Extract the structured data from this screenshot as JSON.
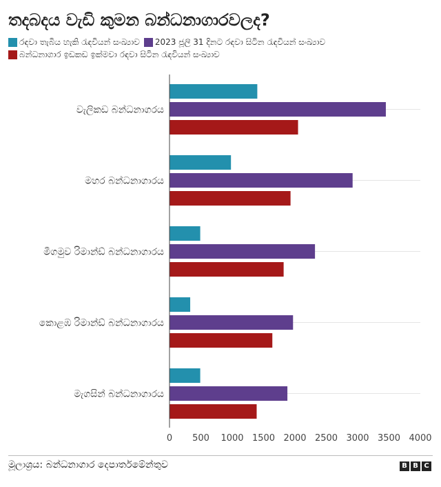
{
  "chart_data": {
    "type": "bar",
    "orientation": "horizontal",
    "title": "තදබදය වැඩි කුමන බන්ධනාගාරවලද?",
    "categories": [
      "වැලිකඩ බන්ධනාගරය",
      "මහර බන්ධනාගාරය",
      "මීගමුව රිමාන්ඩ් බන්ධනාගාරය",
      "කොළඹ රිමාන්ඩ් බන්ධනාගාරය",
      "මැගසින් බන්ධනාගාරය"
    ],
    "series": [
      {
        "name": "රඳවා තැබිය හැකි රැඳවියන් සංඛ්‍යාව",
        "color": "#2390ad",
        "values": [
          1400,
          980,
          490,
          330,
          490
        ]
      },
      {
        "name": "2023 ජූලි 31 දිනට රඳවා සිටින රැඳවියන් සංඛ්‍යාව",
        "color": "#5e3e8d",
        "values": [
          3450,
          2920,
          2320,
          1970,
          1880
        ]
      },
      {
        "name": "බන්ධනාගාර ඉඩකඩ ඉක්මවා රඳවා සිටින රැඳවියන් සංඛ්‍යාව",
        "color": "#a51919",
        "values": [
          2050,
          1930,
          1820,
          1640,
          1390
        ]
      }
    ],
    "xlim": [
      0,
      4000
    ],
    "xticks": [
      "0",
      "500",
      "1000",
      "1500",
      "2000",
      "2500",
      "3000",
      "3500",
      "4000"
    ],
    "grid": true,
    "legend_position": "top-left"
  },
  "footer": {
    "source": "මූලාශ්‍රය: බන්ධනාගාර දෙපාර්තමේන්තුව",
    "logo": [
      "B",
      "B",
      "C"
    ]
  }
}
